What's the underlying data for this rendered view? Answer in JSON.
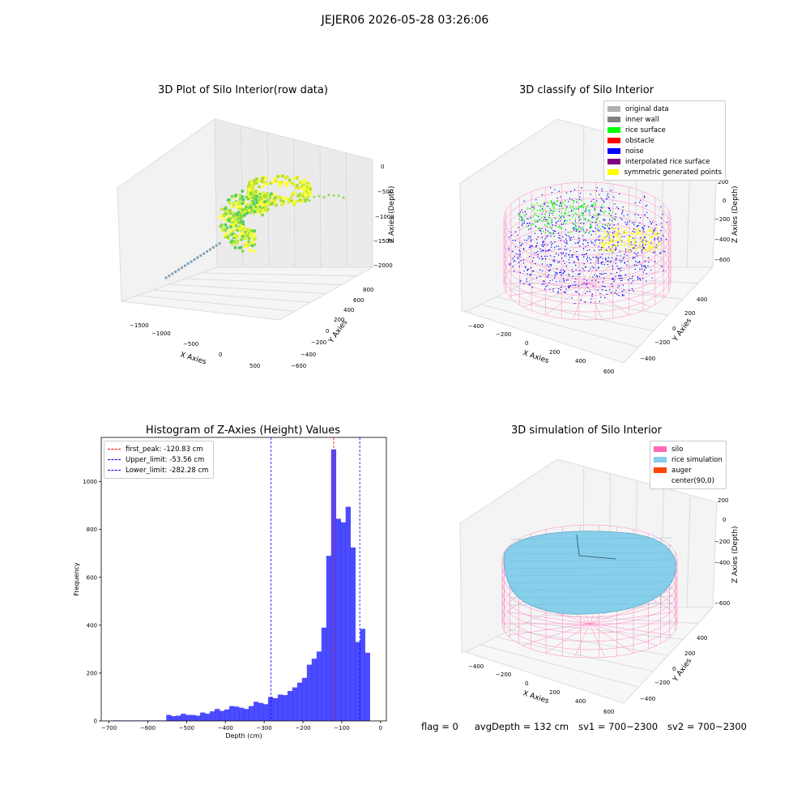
{
  "suptitle": "JEJER06 2026-05-28 03:26:06",
  "colors": {
    "hist": "#0000ff",
    "red_line": "#ff0000",
    "blue_line": "#0000ff",
    "silo": "#ff69b4",
    "rice": "#87ceeb",
    "auger": "#ff4500",
    "noise": "#0000ff",
    "rice_surface": "#00ff00",
    "symmetric": "#ffff00"
  },
  "panels": {
    "raw": {
      "title": "3D Plot of Silo Interior(row data)",
      "xlabel": "X Axies",
      "ylabel": "Y Axies",
      "zlabel": "Z Axies (Depth)",
      "xticks": [
        "−1500",
        "−1000",
        "−500",
        "0",
        "500"
      ],
      "yticks": [
        "−600",
        "−400",
        "−200",
        "0",
        "200",
        "400",
        "600",
        "800"
      ],
      "zticks": [
        "0",
        "−500",
        "−1000",
        "−1500",
        "−2000"
      ]
    },
    "classify": {
      "title": "3D classify of Silo Interior",
      "xlabel": "X Axies",
      "ylabel": "Y Axies",
      "zlabel": "Z Axies (Depth)",
      "xticks": [
        "−400",
        "−200",
        "0",
        "200",
        "400",
        "600"
      ],
      "yticks": [
        "−400",
        "−200",
        "0",
        "200",
        "400"
      ],
      "zticks": [
        "200",
        "0",
        "−200",
        "−400",
        "−600"
      ],
      "legend": [
        {
          "label": "original data",
          "color": "#b0b0b0"
        },
        {
          "label": "inner wall",
          "color": "#808080"
        },
        {
          "label": "rice surface",
          "color": "#00ff00"
        },
        {
          "label": "obstacle",
          "color": "#ff0000"
        },
        {
          "label": "noise",
          "color": "#0000ff"
        },
        {
          "label": "interpolated rice surface",
          "color": "#800080"
        },
        {
          "label": "symmetric generated points",
          "color": "#ffff00"
        }
      ]
    },
    "simulation": {
      "title": "3D simulation of Silo Interior",
      "xlabel": "X Axies",
      "ylabel": "Y Axies",
      "zlabel": "Z Axies (Depth)",
      "xticks": [
        "−400",
        "−200",
        "0",
        "200",
        "400",
        "600"
      ],
      "yticks": [
        "−400",
        "−200",
        "0",
        "200",
        "400"
      ],
      "zticks": [
        "200",
        "0",
        "−200",
        "−400",
        "−600"
      ],
      "legend": [
        {
          "label": "silo",
          "color": "#ff69b4"
        },
        {
          "label": "rice simulation",
          "color": "#87ceeb"
        },
        {
          "label": "auger",
          "color": "#ff4500"
        },
        {
          "label": "center(90,0)",
          "color": ""
        }
      ]
    }
  },
  "footer": {
    "flag": "flag = 0",
    "avg_depth": "avgDepth = 132 cm",
    "sv1": "sv1 = 700~2300",
    "sv2": "sv2 = 700~2300"
  },
  "chart_data": [
    {
      "type": "bar",
      "title": "Histogram of Z-Axies (Height) Values",
      "xlabel": "Depth (cm)",
      "ylabel": "Frequency",
      "xlim": [
        -720,
        15
      ],
      "ylim": [
        0,
        1185
      ],
      "xticks": [
        -700,
        -600,
        -500,
        -400,
        -300,
        -200,
        -100,
        0
      ],
      "yticks": [
        0,
        200,
        400,
        600,
        800,
        1000
      ],
      "bin_edges_start": -690,
      "bin_width": 12.5,
      "values": [
        2,
        2,
        2,
        2,
        2,
        2,
        2,
        2,
        2,
        2,
        2,
        25,
        20,
        22,
        30,
        25,
        25,
        22,
        35,
        30,
        40,
        50,
        42,
        48,
        62,
        60,
        55,
        50,
        62,
        80,
        75,
        70,
        100,
        95,
        110,
        108,
        125,
        140,
        160,
        180,
        235,
        260,
        290,
        390,
        690,
        1135,
        845,
        830,
        895,
        725,
        330,
        385,
        285
      ],
      "lines": [
        {
          "label": "first_peak: -120.83 cm",
          "x": -120.83,
          "color": "#ff0000"
        },
        {
          "label": "Upper_limit: -53.56 cm",
          "x": -53.56,
          "color": "#0000ff"
        },
        {
          "label": "Lower_limit: -282.28 cm",
          "x": -282.28,
          "color": "#0000ff"
        }
      ]
    }
  ]
}
